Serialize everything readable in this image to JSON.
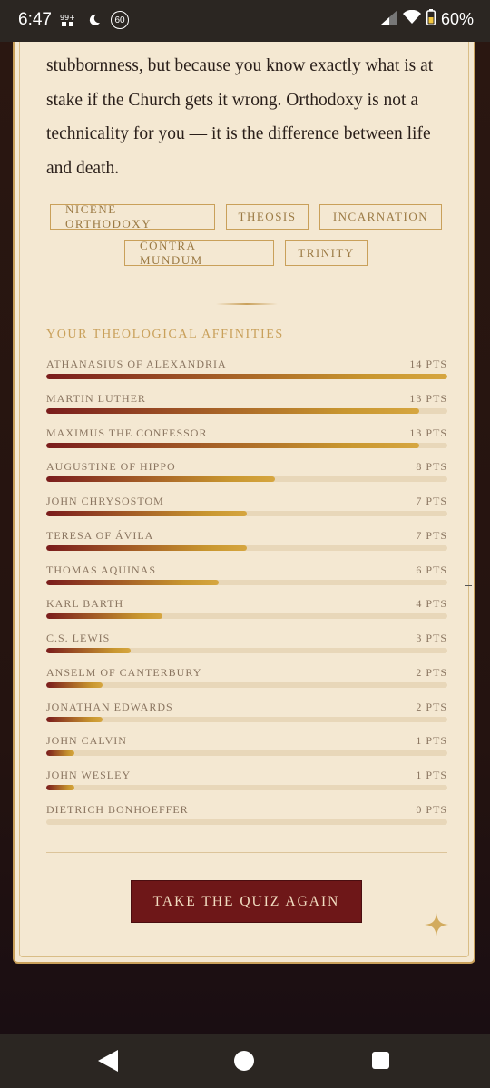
{
  "status_bar": {
    "time": "6:47",
    "left_badge": "60",
    "battery": "60%",
    "icons": [
      "data-usage-icon",
      "moon-icon",
      "notification-badge-icon",
      "signal-icon",
      "wifi-icon",
      "battery-icon"
    ]
  },
  "body_text": "stubbornness, but because you know exactly what is at stake if the Church gets it wrong. Orthodoxy is not a technicality for you — it is the difference between life and death.",
  "tags_row1": [
    "NICENE ORTHODOXY",
    "THEOSIS",
    "INCARNATION"
  ],
  "tags_row2": [
    "CONTRA MUNDUM",
    "TRINITY"
  ],
  "affinities_title": "YOUR THEOLOGICAL AFFINITIES",
  "affinities": [
    {
      "name": "ATHANASIUS OF ALEXANDRIA",
      "pts_label": "14 PTS",
      "fraction": 1.0
    },
    {
      "name": "MARTIN LUTHER",
      "pts_label": "13 PTS",
      "fraction": 0.93
    },
    {
      "name": "MAXIMUS THE CONFESSOR",
      "pts_label": "13 PTS",
      "fraction": 0.93
    },
    {
      "name": "AUGUSTINE OF HIPPO",
      "pts_label": "8 PTS",
      "fraction": 0.57
    },
    {
      "name": "JOHN CHRYSOSTOM",
      "pts_label": "7 PTS",
      "fraction": 0.5
    },
    {
      "name": "TERESA OF ÁVILA",
      "pts_label": "7 PTS",
      "fraction": 0.5
    },
    {
      "name": "THOMAS AQUINAS",
      "pts_label": "6 PTS",
      "fraction": 0.43
    },
    {
      "name": "KARL BARTH",
      "pts_label": "4 PTS",
      "fraction": 0.29
    },
    {
      "name": "C.S. LEWIS",
      "pts_label": "3 PTS",
      "fraction": 0.21
    },
    {
      "name": "ANSELM OF CANTERBURY",
      "pts_label": "2 PTS",
      "fraction": 0.14
    },
    {
      "name": "JONATHAN EDWARDS",
      "pts_label": "2 PTS",
      "fraction": 0.14
    },
    {
      "name": "JOHN CALVIN",
      "pts_label": "1 PTS",
      "fraction": 0.07
    },
    {
      "name": "JOHN WESLEY",
      "pts_label": "1 PTS",
      "fraction": 0.07
    },
    {
      "name": "DIETRICH BONHOEFFER",
      "pts_label": "0 PTS",
      "fraction": 0.0
    }
  ],
  "retake_label": "TAKE THE QUIZ AGAIN",
  "colors": {
    "card_bg": "#f4e8d2",
    "gold": "#c9a05a",
    "burgundy": "#6e1718"
  }
}
